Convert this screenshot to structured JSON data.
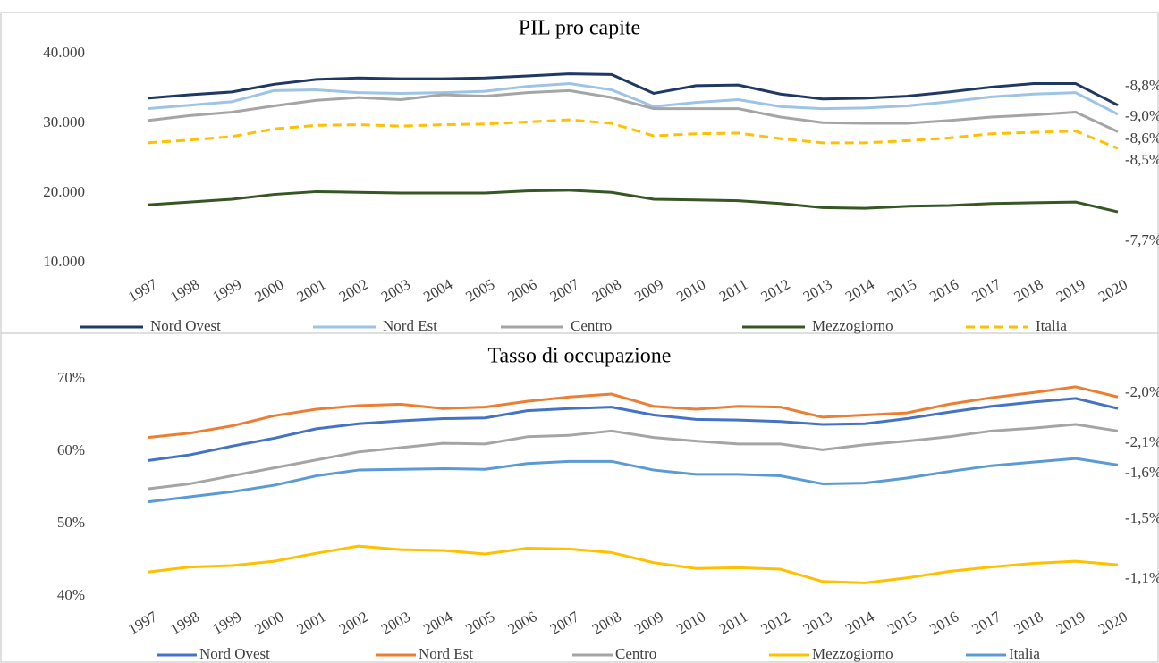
{
  "chart_data": [
    {
      "type": "line",
      "title": "PIL pro capite",
      "categories": [
        "1997",
        "1998",
        "1999",
        "2000",
        "2001",
        "2002",
        "2003",
        "2004",
        "2005",
        "2006",
        "2007",
        "2008",
        "2009",
        "2010",
        "2011",
        "2012",
        "2013",
        "2014",
        "2015",
        "2016",
        "2017",
        "2018",
        "2019",
        "2020"
      ],
      "ylim": [
        10000,
        40000
      ],
      "yticks": [
        {
          "value": 10000,
          "label": "10.000"
        },
        {
          "value": 20000,
          "label": "20.000"
        },
        {
          "value": 30000,
          "label": "30.000"
        },
        {
          "value": 40000,
          "label": "40.000"
        }
      ],
      "grid": false,
      "legend": "bottom",
      "series": [
        {
          "name": "Nord Ovest",
          "color": "#1f3864",
          "end_label": "-8,8%",
          "values": [
            33600,
            34100,
            34500,
            35600,
            36300,
            36500,
            36400,
            36400,
            36500,
            36800,
            37100,
            37000,
            34300,
            35400,
            35500,
            34200,
            33500,
            33600,
            33900,
            34500,
            35200,
            35700,
            35700,
            32600
          ]
        },
        {
          "name": "Nord Est",
          "color": "#9dc3e6",
          "end_label": "-9,0%",
          "values": [
            32100,
            32600,
            33100,
            34700,
            34800,
            34400,
            34300,
            34400,
            34600,
            35300,
            35700,
            34800,
            32400,
            33000,
            33400,
            32400,
            32100,
            32200,
            32500,
            33100,
            33800,
            34200,
            34400,
            31300
          ]
        },
        {
          "name": "Centro",
          "color": "#a5a5a5",
          "end_label": "-8,6%",
          "values": [
            30400,
            31100,
            31600,
            32500,
            33300,
            33700,
            33400,
            34100,
            33900,
            34400,
            34700,
            33700,
            32100,
            32100,
            32100,
            30900,
            30100,
            30000,
            30000,
            30400,
            30900,
            31200,
            31600,
            28800
          ]
        },
        {
          "name": "Mezzogiorno",
          "color": "#375623",
          "end_label": "-7,7%",
          "values": [
            18300,
            18700,
            19100,
            19800,
            20200,
            20100,
            20000,
            20000,
            20000,
            20300,
            20400,
            20100,
            19100,
            19000,
            18900,
            18500,
            17900,
            17800,
            18100,
            18200,
            18500,
            18600,
            18700,
            17300
          ]
        },
        {
          "name": "Italia",
          "color": "#ffc000",
          "dashed": true,
          "end_label": "-8,5%",
          "values": [
            27200,
            27600,
            28100,
            29200,
            29700,
            29800,
            29600,
            29800,
            29900,
            30200,
            30500,
            30000,
            28200,
            28500,
            28600,
            27800,
            27200,
            27200,
            27500,
            27900,
            28500,
            28700,
            28900,
            26400
          ]
        }
      ]
    },
    {
      "type": "line",
      "title": "Tasso di occupazione",
      "categories": [
        "1997",
        "1998",
        "1999",
        "2000",
        "2001",
        "2002",
        "2003",
        "2004",
        "2005",
        "2006",
        "2007",
        "2008",
        "2009",
        "2010",
        "2011",
        "2012",
        "2013",
        "2014",
        "2015",
        "2016",
        "2017",
        "2018",
        "2019",
        "2020"
      ],
      "ylim": [
        40,
        70
      ],
      "yticks": [
        {
          "value": 40,
          "label": "40%"
        },
        {
          "value": 50,
          "label": "50%"
        },
        {
          "value": 60,
          "label": "60%"
        },
        {
          "value": 70,
          "label": "70%"
        }
      ],
      "grid": false,
      "legend": "bottom",
      "series": [
        {
          "name": "Nord Ovest",
          "color": "#4472c4",
          "end_label": "-2,1%",
          "values": [
            58.7,
            59.5,
            60.7,
            61.8,
            63.1,
            63.8,
            64.2,
            64.5,
            64.6,
            65.6,
            65.9,
            66.1,
            65.0,
            64.4,
            64.3,
            64.1,
            63.7,
            63.8,
            64.5,
            65.4,
            66.2,
            66.8,
            67.3,
            65.9
          ]
        },
        {
          "name": "Nord Est",
          "color": "#ed7d31",
          "end_label": "-2,0%",
          "values": [
            61.9,
            62.5,
            63.5,
            64.9,
            65.8,
            66.3,
            66.5,
            65.9,
            66.1,
            66.9,
            67.5,
            67.9,
            66.2,
            65.8,
            66.2,
            66.1,
            64.7,
            65.0,
            65.3,
            66.5,
            67.4,
            68.1,
            68.9,
            67.5
          ]
        },
        {
          "name": "Centro",
          "color": "#a5a5a5",
          "end_label": "-1,6%",
          "values": [
            54.8,
            55.5,
            56.6,
            57.7,
            58.8,
            59.9,
            60.5,
            61.1,
            61.0,
            62.0,
            62.2,
            62.8,
            61.9,
            61.4,
            61.0,
            61.0,
            60.2,
            60.9,
            61.4,
            62.0,
            62.8,
            63.2,
            63.7,
            62.8
          ]
        },
        {
          "name": "Mezzogiorno",
          "color": "#ffc000",
          "end_label": "-1,1%",
          "values": [
            43.3,
            44.0,
            44.2,
            44.8,
            45.9,
            46.9,
            46.4,
            46.3,
            45.8,
            46.6,
            46.5,
            46.0,
            44.6,
            43.8,
            43.9,
            43.7,
            42.0,
            41.8,
            42.5,
            43.4,
            44.0,
            44.5,
            44.8,
            44.3
          ]
        },
        {
          "name": "Italia",
          "color": "#5b9bd5",
          "end_label": "-1,5%",
          "values": [
            53.0,
            53.7,
            54.4,
            55.3,
            56.6,
            57.4,
            57.5,
            57.6,
            57.5,
            58.3,
            58.6,
            58.6,
            57.4,
            56.8,
            56.8,
            56.6,
            55.5,
            55.6,
            56.3,
            57.2,
            58.0,
            58.5,
            59.0,
            58.1
          ]
        }
      ]
    }
  ]
}
